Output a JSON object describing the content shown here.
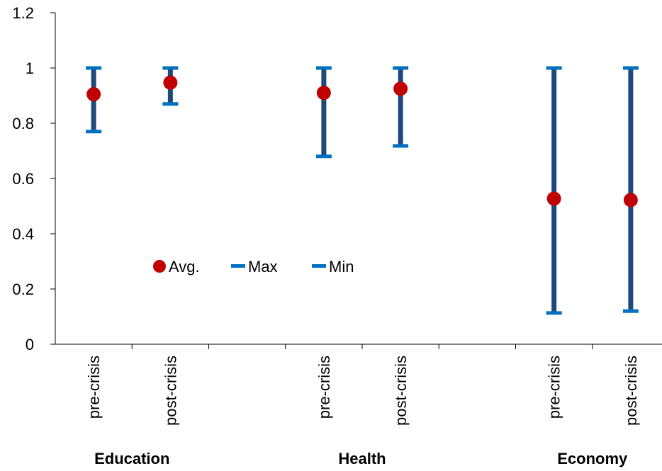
{
  "chart_data": {
    "type": "scatter",
    "title": "",
    "xlabel": "",
    "ylabel": "",
    "ylim": [
      0,
      1.2
    ],
    "y_ticks": [
      "0",
      "0.2",
      "0.4",
      "0.6",
      "0.8",
      "1",
      "1.2"
    ],
    "grid": false,
    "legend_position": "center-left",
    "legend": [
      "Avg.",
      "Max",
      "Min"
    ],
    "groups": [
      "Education",
      "Health",
      "Economy"
    ],
    "categories": [
      "pre-crisis",
      "post-crisis",
      "",
      "pre-crisis",
      "post-crisis",
      "",
      "pre-crisis",
      "post-crisis"
    ],
    "points": [
      {
        "group": "Education",
        "category": "pre-crisis",
        "avg": 0.905,
        "max": 1.0,
        "min": 0.77
      },
      {
        "group": "Education",
        "category": "post-crisis",
        "avg": 0.947,
        "max": 1.0,
        "min": 0.87
      },
      {
        "group": "Health",
        "category": "pre-crisis",
        "avg": 0.91,
        "max": 1.0,
        "min": 0.68
      },
      {
        "group": "Health",
        "category": "post-crisis",
        "avg": 0.925,
        "max": 1.0,
        "min": 0.718
      },
      {
        "group": "Economy",
        "category": "pre-crisis",
        "avg": 0.527,
        "max": 1.0,
        "min": 0.113
      },
      {
        "group": "Economy",
        "category": "post-crisis",
        "avg": 0.522,
        "max": 1.0,
        "min": 0.12
      }
    ],
    "colors": {
      "avg": "#c00000",
      "bar": "#1f497d",
      "cap": "#0070c0"
    }
  }
}
